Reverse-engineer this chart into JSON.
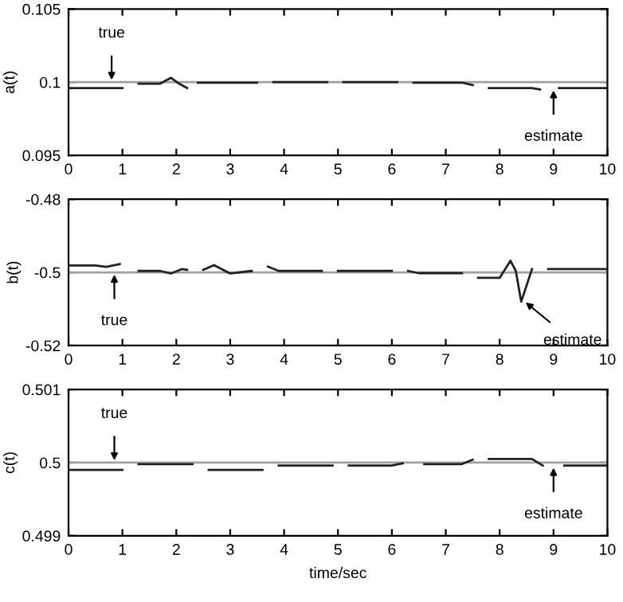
{
  "chart_data": [
    {
      "type": "line",
      "ylabel": "a(t)",
      "xlim": [
        0,
        10
      ],
      "ylim": [
        0.095,
        0.105
      ],
      "xticks": [
        0,
        1,
        2,
        3,
        4,
        5,
        6,
        7,
        8,
        9,
        10
      ],
      "yticks": [
        0.095,
        0.1,
        0.105
      ],
      "grid": false,
      "legend": false,
      "series": [
        {
          "color": "#a0a0a0",
          "x": [
            0,
            10
          ],
          "values": [
            0.1,
            0.1
          ]
        },
        {
          "color": "#222222",
          "x": [
            0,
            1,
            1.15,
            1.3,
            1.7,
            1.9,
            2.05,
            2.2,
            2.3,
            2.4,
            3.5,
            3.65,
            3.8,
            4.8,
            4.95,
            5.1,
            6.1,
            6.25,
            6.4,
            7.3,
            7.5,
            7.65,
            7.8,
            8.6,
            8.75,
            8.9,
            9.1,
            10
          ],
          "values": [
            0.0996,
            0.0996,
            null,
            0.0999,
            0.0999,
            0.1003,
            0.0999,
            0.0996,
            null,
            0.09997,
            0.09997,
            null,
            0.1,
            0.1,
            null,
            0.1,
            0.1,
            null,
            0.09997,
            0.09997,
            0.0998,
            null,
            0.0996,
            0.0996,
            0.0995,
            null,
            0.0996,
            0.0996
          ]
        }
      ],
      "annotations": [
        {
          "text": "true",
          "x": 0.8,
          "y": 0.1
        },
        {
          "text": "estimate",
          "x": 9,
          "y": 0.0996
        }
      ]
    },
    {
      "type": "line",
      "ylabel": "b(t)",
      "xlim": [
        0,
        10
      ],
      "ylim": [
        -0.52,
        -0.48
      ],
      "xticks": [
        0,
        1,
        2,
        3,
        4,
        5,
        6,
        7,
        8,
        9,
        10
      ],
      "yticks": [
        -0.52,
        -0.5,
        -0.48
      ],
      "grid": false,
      "legend": false,
      "series": [
        {
          "color": "#a0a0a0",
          "x": [
            0,
            10
          ],
          "values": [
            -0.5,
            -0.5
          ]
        },
        {
          "color": "#222222",
          "x": [
            0,
            0.5,
            0.7,
            0.95,
            1.1,
            1.3,
            1.7,
            1.9,
            2.1,
            2.2,
            2.35,
            2.5,
            2.7,
            3.0,
            3.4,
            3.55,
            3.7,
            3.9,
            4.7,
            4.85,
            5.0,
            6.0,
            6.15,
            6.3,
            6.5,
            7.3,
            7.45,
            7.6,
            8.0,
            8.2,
            8.3,
            8.4,
            8.6,
            8.75,
            8.9,
            10
          ],
          "values": [
            -0.4981,
            -0.4981,
            -0.4985,
            -0.4977,
            null,
            -0.4996,
            -0.4996,
            -0.5003,
            -0.4991,
            -0.4993,
            null,
            -0.4993,
            -0.498,
            -0.5003,
            -0.4996,
            null,
            -0.4984,
            -0.4996,
            -0.4996,
            null,
            -0.4996,
            -0.4996,
            null,
            -0.4996,
            -0.5002,
            -0.5002,
            null,
            -0.5015,
            -0.5015,
            -0.4968,
            -0.4996,
            -0.508,
            -0.4991,
            null,
            -0.4991,
            -0.4991
          ]
        }
      ],
      "annotations": [
        {
          "text": "true",
          "x": 0.85,
          "y": -0.5
        },
        {
          "text": "estimate",
          "x": 8.45,
          "y": -0.5078
        }
      ]
    },
    {
      "type": "line",
      "ylabel": "c(t)",
      "xlabel": "time/sec",
      "xlim": [
        0,
        10
      ],
      "ylim": [
        0.499,
        0.501
      ],
      "xticks": [
        0,
        1,
        2,
        3,
        4,
        5,
        6,
        7,
        8,
        9,
        10
      ],
      "yticks": [
        0.499,
        0.5,
        0.501
      ],
      "grid": false,
      "legend": false,
      "series": [
        {
          "color": "#a0a0a0",
          "x": [
            0,
            10
          ],
          "values": [
            0.5,
            0.5
          ]
        },
        {
          "color": "#222222",
          "x": [
            0,
            1,
            1.15,
            1.3,
            2.3,
            2.45,
            2.6,
            3.6,
            3.75,
            3.9,
            4.9,
            5.05,
            5.2,
            6.0,
            6.2,
            6.4,
            6.6,
            7.3,
            7.5,
            7.65,
            7.8,
            8.6,
            8.8,
            9.0,
            9.2,
            10
          ],
          "values": [
            0.4999,
            0.4999,
            null,
            0.49998,
            0.49998,
            null,
            0.4999,
            0.4999,
            null,
            0.49996,
            0.49996,
            null,
            0.49996,
            0.49996,
            0.49999,
            null,
            0.49998,
            0.49998,
            0.50004,
            null,
            0.50005,
            0.50005,
            0.49996,
            null,
            0.49996,
            0.49996
          ]
        }
      ],
      "annotations": [
        {
          "text": "true",
          "x": 0.85,
          "y": 0.5
        },
        {
          "text": "estimate",
          "x": 9,
          "y": 0.49996
        }
      ]
    }
  ]
}
